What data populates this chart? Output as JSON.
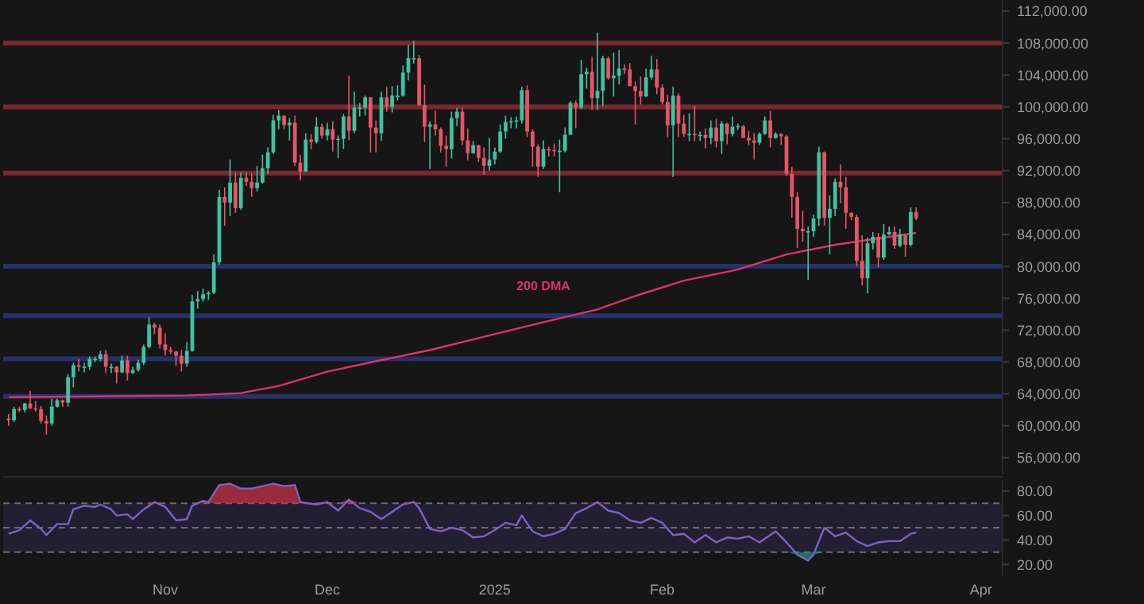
{
  "chart_data": [
    {
      "type": "candlestick",
      "tick_labels": "y",
      "grid": false,
      "xlim": [
        "2024-10-02",
        "2025-04-05"
      ],
      "ylim": [
        54000,
        113400
      ],
      "yticks": [
        {
          "value": 56000,
          "label": "56,000.00"
        },
        {
          "value": 60000,
          "label": "60,000.00"
        },
        {
          "value": 64000,
          "label": "64,000.00"
        },
        {
          "value": 68000,
          "label": "68,000.00"
        },
        {
          "value": 72000,
          "label": "72,000.00"
        },
        {
          "value": 76000,
          "label": "76,000.00"
        },
        {
          "value": 80000,
          "label": "80,000.00"
        },
        {
          "value": 84000,
          "label": "84,000.00"
        },
        {
          "value": 88000,
          "label": "88,000.00"
        },
        {
          "value": 92000,
          "label": "92,000.00"
        },
        {
          "value": 96000,
          "label": "96,000.00"
        },
        {
          "value": 100000,
          "label": "100,000.00"
        },
        {
          "value": 104000,
          "label": "104,000.00"
        },
        {
          "value": 108000,
          "label": "108,000.00"
        },
        {
          "value": 112000,
          "label": "112,000.00"
        }
      ],
      "ref_lines": [
        {
          "axis": "y",
          "value": 108000,
          "color": "#7b2630"
        },
        {
          "axis": "y",
          "value": 100000,
          "color": "#7b2630"
        },
        {
          "axis": "y",
          "value": 91700,
          "color": "#7b2630"
        },
        {
          "axis": "y",
          "value": 80000,
          "color": "#26306b"
        },
        {
          "axis": "y",
          "value": 73800,
          "color": "#26306b"
        },
        {
          "axis": "y",
          "value": 68400,
          "color": "#26306b"
        },
        {
          "axis": "y",
          "value": 63700,
          "color": "#26306b"
        }
      ],
      "x": [
        "2024-10-03",
        "2024-10-04",
        "2024-10-05",
        "2024-10-06",
        "2024-10-07",
        "2024-10-08",
        "2024-10-09",
        "2024-10-10",
        "2024-10-11",
        "2024-10-12",
        "2024-10-13",
        "2024-10-14",
        "2024-10-15",
        "2024-10-16",
        "2024-10-17",
        "2024-10-18",
        "2024-10-19",
        "2024-10-20",
        "2024-10-21",
        "2024-10-22",
        "2024-10-23",
        "2024-10-24",
        "2024-10-25",
        "2024-10-26",
        "2024-10-27",
        "2024-10-28",
        "2024-10-29",
        "2024-10-30",
        "2024-10-31",
        "2024-11-01",
        "2024-11-02",
        "2024-11-03",
        "2024-11-04",
        "2024-11-05",
        "2024-11-06",
        "2024-11-07",
        "2024-11-08",
        "2024-11-09",
        "2024-11-10",
        "2024-11-11",
        "2024-11-12",
        "2024-11-13",
        "2024-11-14",
        "2024-11-15",
        "2024-11-16",
        "2024-11-17",
        "2024-11-18",
        "2024-11-19",
        "2024-11-20",
        "2024-11-21",
        "2024-11-22",
        "2024-11-23",
        "2024-11-24",
        "2024-11-25",
        "2024-11-26",
        "2024-11-27",
        "2024-11-28",
        "2024-11-29",
        "2024-11-30",
        "2024-12-01",
        "2024-12-02",
        "2024-12-03",
        "2024-12-04",
        "2024-12-05",
        "2024-12-06",
        "2024-12-07",
        "2024-12-08",
        "2024-12-09",
        "2024-12-10",
        "2024-12-11",
        "2024-12-12",
        "2024-12-13",
        "2024-12-14",
        "2024-12-15",
        "2024-12-16",
        "2024-12-17",
        "2024-12-18",
        "2024-12-19",
        "2024-12-20",
        "2024-12-21",
        "2024-12-22",
        "2024-12-23",
        "2024-12-24",
        "2024-12-25",
        "2024-12-26",
        "2024-12-27",
        "2024-12-28",
        "2024-12-29",
        "2024-12-30",
        "2024-12-31",
        "2025-01-01",
        "2025-01-02",
        "2025-01-03",
        "2025-01-04",
        "2025-01-05",
        "2025-01-06",
        "2025-01-07",
        "2025-01-08",
        "2025-01-09",
        "2025-01-10",
        "2025-01-11",
        "2025-01-12",
        "2025-01-13",
        "2025-01-14",
        "2025-01-15",
        "2025-01-16",
        "2025-01-17",
        "2025-01-18",
        "2025-01-19",
        "2025-01-20",
        "2025-01-21",
        "2025-01-22",
        "2025-01-23",
        "2025-01-24",
        "2025-01-25",
        "2025-01-26",
        "2025-01-27",
        "2025-01-28",
        "2025-01-29",
        "2025-01-30",
        "2025-01-31",
        "2025-02-01",
        "2025-02-02",
        "2025-02-03",
        "2025-02-04",
        "2025-02-05",
        "2025-02-06",
        "2025-02-07",
        "2025-02-08",
        "2025-02-09",
        "2025-02-10",
        "2025-02-11",
        "2025-02-12",
        "2025-02-13",
        "2025-02-14",
        "2025-02-15",
        "2025-02-16",
        "2025-02-17",
        "2025-02-18",
        "2025-02-19",
        "2025-02-20",
        "2025-02-21",
        "2025-02-22",
        "2025-02-23",
        "2025-02-24",
        "2025-02-25",
        "2025-02-26",
        "2025-02-27",
        "2025-02-28",
        "2025-03-01",
        "2025-03-02",
        "2025-03-03",
        "2025-03-04",
        "2025-03-05",
        "2025-03-06",
        "2025-03-07",
        "2025-03-08",
        "2025-03-09",
        "2025-03-10",
        "2025-03-11",
        "2025-03-12",
        "2025-03-13",
        "2025-03-14",
        "2025-03-15",
        "2025-03-16",
        "2025-03-17",
        "2025-03-18",
        "2025-03-19",
        "2025-03-20"
      ],
      "ohlc": [
        [
          60900,
          61500,
          60000,
          60700
        ],
        [
          60700,
          62400,
          60500,
          62100
        ],
        [
          62100,
          62400,
          61700,
          62000
        ],
        [
          62000,
          62900,
          61700,
          62800
        ],
        [
          62800,
          64400,
          62100,
          62200
        ],
        [
          62200,
          63100,
          61800,
          62100
        ],
        [
          62100,
          62500,
          60300,
          60600
        ],
        [
          60600,
          61300,
          58900,
          60300
        ],
        [
          60300,
          63400,
          60000,
          62400
        ],
        [
          62400,
          63400,
          62300,
          63200
        ],
        [
          63200,
          63300,
          62400,
          62900
        ],
        [
          62900,
          66500,
          62400,
          66100
        ],
        [
          66100,
          67900,
          64800,
          67600
        ],
        [
          67600,
          68400,
          66800,
          67400
        ],
        [
          67400,
          67900,
          66700,
          67400
        ],
        [
          67400,
          68700,
          67000,
          68400
        ],
        [
          68400,
          68700,
          68000,
          68400
        ],
        [
          68400,
          69400,
          68100,
          69000
        ],
        [
          69000,
          69500,
          66600,
          67400
        ],
        [
          67400,
          67800,
          66600,
          67400
        ],
        [
          67400,
          67500,
          65300,
          66700
        ],
        [
          66700,
          68800,
          66600,
          68200
        ],
        [
          68200,
          68800,
          65700,
          66600
        ],
        [
          66600,
          67400,
          66500,
          67000
        ],
        [
          67000,
          68300,
          66800,
          67900
        ],
        [
          67900,
          70200,
          67600,
          69900
        ],
        [
          69900,
          73600,
          69700,
          72700
        ],
        [
          72700,
          72900,
          71500,
          72300
        ],
        [
          72300,
          72700,
          69700,
          70200
        ],
        [
          70200,
          71600,
          68800,
          69500
        ],
        [
          69500,
          69900,
          69000,
          69300
        ],
        [
          69300,
          69400,
          67500,
          68800
        ],
        [
          68800,
          69500,
          66800,
          67800
        ],
        [
          67800,
          70500,
          67400,
          69400
        ],
        [
          69400,
          76400,
          69300,
          75600
        ],
        [
          75600,
          76900,
          74700,
          75900
        ],
        [
          75900,
          77200,
          75600,
          76500
        ],
        [
          76500,
          76900,
          75800,
          76700
        ],
        [
          76700,
          81500,
          76500,
          80500
        ],
        [
          80500,
          89600,
          80200,
          88700
        ],
        [
          88700,
          89900,
          85100,
          88000
        ],
        [
          88000,
          93400,
          86300,
          90500
        ],
        [
          90500,
          91800,
          86700,
          87300
        ],
        [
          87300,
          91800,
          87100,
          91100
        ],
        [
          91100,
          91800,
          90100,
          90600
        ],
        [
          90600,
          91700,
          88700,
          89800
        ],
        [
          89800,
          92600,
          89400,
          90500
        ],
        [
          90500,
          94000,
          90400,
          92300
        ],
        [
          92300,
          94900,
          91600,
          94300
        ],
        [
          94300,
          99000,
          94100,
          98300
        ],
        [
          98300,
          99600,
          97200,
          98900
        ],
        [
          98900,
          98900,
          97200,
          97700
        ],
        [
          97700,
          98600,
          95800,
          98000
        ],
        [
          98000,
          98900,
          92600,
          93000
        ],
        [
          93000,
          94000,
          90800,
          91900
        ],
        [
          91900,
          96700,
          91800,
          95900
        ],
        [
          95900,
          96600,
          94700,
          95600
        ],
        [
          95600,
          98700,
          95400,
          97500
        ],
        [
          97500,
          97900,
          96000,
          96400
        ],
        [
          96400,
          98000,
          95800,
          97200
        ],
        [
          97200,
          98200,
          94400,
          95900
        ],
        [
          95900,
          96400,
          93600,
          96000
        ],
        [
          96000,
          99100,
          94700,
          98800
        ],
        [
          98800,
          103900,
          95800,
          97000
        ],
        [
          97000,
          101900,
          96700,
          99900
        ],
        [
          99900,
          100500,
          98800,
          99900
        ],
        [
          99900,
          101400,
          98900,
          101200
        ],
        [
          101200,
          101200,
          94300,
          97400
        ],
        [
          97400,
          98300,
          94300,
          96700
        ],
        [
          96700,
          101900,
          95700,
          101200
        ],
        [
          101200,
          102500,
          99400,
          100000
        ],
        [
          100000,
          102600,
          99300,
          101400
        ],
        [
          101400,
          102700,
          100800,
          101400
        ],
        [
          101400,
          105200,
          101300,
          104300
        ],
        [
          104300,
          107800,
          103300,
          106100
        ],
        [
          106100,
          108300,
          105400,
          106100
        ],
        [
          106100,
          106500,
          100100,
          100200
        ],
        [
          100200,
          102800,
          95600,
          97500
        ],
        [
          97500,
          98200,
          92200,
          97800
        ],
        [
          97800,
          99500,
          96400,
          97200
        ],
        [
          97200,
          97400,
          94300,
          95100
        ],
        [
          95100,
          96400,
          92500,
          94700
        ],
        [
          94700,
          99400,
          93500,
          98600
        ],
        [
          98600,
          99900,
          97600,
          99400
        ],
        [
          99400,
          99900,
          95200,
          95800
        ],
        [
          95800,
          97300,
          93300,
          94200
        ],
        [
          94200,
          95700,
          94100,
          95200
        ],
        [
          95200,
          95200,
          93100,
          93600
        ],
        [
          93600,
          94900,
          91500,
          92600
        ],
        [
          92600,
          96100,
          92000,
          93400
        ],
        [
          93400,
          94900,
          92800,
          94400
        ],
        [
          94400,
          97800,
          94200,
          96900
        ],
        [
          96900,
          98900,
          96000,
          98100
        ],
        [
          98100,
          98700,
          97300,
          98200
        ],
        [
          98200,
          98800,
          97300,
          98300
        ],
        [
          98300,
          102500,
          97900,
          102100
        ],
        [
          102100,
          102700,
          96200,
          96900
        ],
        [
          96900,
          97200,
          92500,
          95000
        ],
        [
          95000,
          95300,
          91200,
          92500
        ],
        [
          92500,
          95800,
          92200,
          94700
        ],
        [
          94700,
          95000,
          93800,
          94600
        ],
        [
          94600,
          95400,
          93800,
          94500
        ],
        [
          94500,
          95900,
          89300,
          94500
        ],
        [
          94500,
          97400,
          94300,
          96500
        ],
        [
          96500,
          100700,
          96500,
          100500
        ],
        [
          100500,
          100800,
          97300,
          99900
        ],
        [
          99900,
          105900,
          99700,
          104100
        ],
        [
          104100,
          104900,
          102300,
          104400
        ],
        [
          104400,
          106300,
          99600,
          101100
        ],
        [
          101100,
          109300,
          99600,
          102000
        ],
        [
          102000,
          106400,
          100100,
          106100
        ],
        [
          106100,
          106300,
          103400,
          103600
        ],
        [
          103600,
          106800,
          101300,
          103900
        ],
        [
          103900,
          107100,
          102800,
          104800
        ],
        [
          104800,
          105300,
          104100,
          104700
        ],
        [
          104700,
          105500,
          102600,
          102600
        ],
        [
          102600,
          103200,
          97800,
          102000
        ],
        [
          102000,
          103800,
          100300,
          101300
        ],
        [
          101300,
          104800,
          101300,
          103700
        ],
        [
          103700,
          106400,
          103400,
          104700
        ],
        [
          104700,
          106000,
          101600,
          102400
        ],
        [
          102400,
          102800,
          100300,
          100600
        ],
        [
          100600,
          101500,
          96200,
          97700
        ],
        [
          97700,
          102500,
          91200,
          101400
        ],
        [
          101400,
          101700,
          96200,
          97900
        ],
        [
          97900,
          99000,
          96200,
          96600
        ],
        [
          96600,
          99200,
          95700,
          96600
        ],
        [
          96600,
          100100,
          95700,
          96500
        ],
        [
          96500,
          96900,
          95700,
          96500
        ],
        [
          96500,
          97300,
          94800,
          96100
        ],
        [
          96100,
          98300,
          95300,
          97400
        ],
        [
          97400,
          98500,
          94900,
          95700
        ],
        [
          95700,
          98200,
          94100,
          97900
        ],
        [
          97900,
          98000,
          95300,
          96600
        ],
        [
          96600,
          98800,
          96300,
          97500
        ],
        [
          97500,
          97900,
          97100,
          97600
        ],
        [
          97600,
          97700,
          96100,
          96100
        ],
        [
          96100,
          97000,
          95200,
          95800
        ],
        [
          95800,
          96700,
          93400,
          95500
        ],
        [
          95500,
          96800,
          95200,
          96600
        ],
        [
          96600,
          98800,
          96500,
          98300
        ],
        [
          98300,
          99500,
          94900,
          96100
        ],
        [
          96100,
          96800,
          96000,
          96600
        ],
        [
          96600,
          96700,
          95200,
          96300
        ],
        [
          96300,
          96500,
          91300,
          91600
        ],
        [
          91600,
          92500,
          86100,
          88700
        ],
        [
          88700,
          89300,
          82300,
          84700
        ],
        [
          84700,
          87000,
          83100,
          84400
        ],
        [
          84400,
          85000,
          78300,
          84400
        ],
        [
          84400,
          86500,
          83700,
          86000
        ],
        [
          86000,
          95000,
          85100,
          94300
        ],
        [
          94300,
          94400,
          85100,
          86100
        ],
        [
          86100,
          88900,
          81500,
          87200
        ],
        [
          87200,
          91000,
          86300,
          90600
        ],
        [
          90600,
          92800,
          87900,
          89900
        ],
        [
          89900,
          91200,
          84700,
          86700
        ],
        [
          86700,
          86800,
          85800,
          86200
        ],
        [
          86200,
          86500,
          80000,
          80700
        ],
        [
          80700,
          83900,
          77600,
          78500
        ],
        [
          78500,
          83600,
          76600,
          82900
        ],
        [
          82900,
          84300,
          82100,
          83700
        ],
        [
          83700,
          84200,
          79900,
          81100
        ],
        [
          81100,
          85300,
          80800,
          84000
        ],
        [
          84000,
          85000,
          83900,
          84300
        ],
        [
          84300,
          85000,
          82200,
          82600
        ],
        [
          82600,
          84700,
          82400,
          84000
        ],
        [
          84000,
          84000,
          81200,
          82700
        ],
        [
          82700,
          87400,
          82500,
          86800
        ],
        [
          86800,
          87400,
          85800,
          86000
        ]
      ],
      "series": [
        {
          "name": "200 DMA",
          "type": "line",
          "color": "#e0306f",
          "x": [
            "2024-10-03",
            "2024-10-20",
            "2024-11-05",
            "2024-11-15",
            "2024-11-22",
            "2024-12-01",
            "2024-12-10",
            "2024-12-20",
            "2025-01-01",
            "2025-01-10",
            "2025-01-20",
            "2025-01-28",
            "2025-02-05",
            "2025-02-15",
            "2025-02-24",
            "2025-03-05",
            "2025-03-12",
            "2025-03-20"
          ],
          "values": [
            63600,
            63700,
            63800,
            64100,
            65000,
            66800,
            68100,
            69500,
            71500,
            73000,
            74600,
            76500,
            78200,
            79600,
            81500,
            82700,
            83400,
            84200
          ]
        }
      ]
    },
    {
      "type": "line",
      "grid": false,
      "xlim": [
        "2024-10-02",
        "2025-04-05"
      ],
      "ylim": [
        11,
        89
      ],
      "xticks": [
        {
          "value": "2024-11-01",
          "label": "Nov"
        },
        {
          "value": "2024-12-01",
          "label": "Dec"
        },
        {
          "value": "2025-01-01",
          "label": "2025"
        },
        {
          "value": "2025-02-01",
          "label": "Feb"
        },
        {
          "value": "2025-03-01",
          "label": "Mar"
        },
        {
          "value": "2025-04-01",
          "label": "Apr"
        }
      ],
      "yticks": [
        {
          "value": 20,
          "label": "20.00"
        },
        {
          "value": 40,
          "label": "40.00"
        },
        {
          "value": 60,
          "label": "60.00"
        },
        {
          "value": 80,
          "label": "80.00"
        }
      ],
      "bands": [
        {
          "axis": "y",
          "from": 30,
          "to": 70,
          "color": "#221f33"
        }
      ],
      "ref_lines": [
        {
          "axis": "y",
          "value": 70,
          "color": "#6a6a78",
          "line_style": "dashed"
        },
        {
          "axis": "y",
          "value": 50,
          "color": "#6a6a78",
          "line_style": "dashed"
        },
        {
          "axis": "y",
          "value": 30,
          "color": "#6a6a78",
          "line_style": "dashed"
        }
      ],
      "series": [
        {
          "color": "#7e5fc4",
          "x": [
            "2024-10-03",
            "2024-10-05",
            "2024-10-07",
            "2024-10-09",
            "2024-10-10",
            "2024-10-12",
            "2024-10-14",
            "2024-10-15",
            "2024-10-17",
            "2024-10-19",
            "2024-10-20",
            "2024-10-22",
            "2024-10-23",
            "2024-10-25",
            "2024-10-26",
            "2024-10-28",
            "2024-10-30",
            "2024-11-01",
            "2024-11-03",
            "2024-11-05",
            "2024-11-06",
            "2024-11-08",
            "2024-11-09",
            "2024-11-11",
            "2024-11-13",
            "2024-11-15",
            "2024-11-17",
            "2024-11-19",
            "2024-11-21",
            "2024-11-23",
            "2024-11-25",
            "2024-11-26",
            "2024-11-29",
            "2024-12-01",
            "2024-12-03",
            "2024-12-05",
            "2024-12-07",
            "2024-12-09",
            "2024-12-11",
            "2024-12-13",
            "2024-12-15",
            "2024-12-17",
            "2024-12-18",
            "2024-12-20",
            "2024-12-22",
            "2024-12-24",
            "2024-12-26",
            "2024-12-28",
            "2024-12-30",
            "2025-01-01",
            "2025-01-03",
            "2025-01-05",
            "2025-01-06",
            "2025-01-08",
            "2025-01-10",
            "2025-01-12",
            "2025-01-14",
            "2025-01-16",
            "2025-01-18",
            "2025-01-20",
            "2025-01-22",
            "2025-01-24",
            "2025-01-26",
            "2025-01-28",
            "2025-01-30",
            "2025-02-01",
            "2025-02-03",
            "2025-02-05",
            "2025-02-07",
            "2025-02-09",
            "2025-02-11",
            "2025-02-13",
            "2025-02-15",
            "2025-02-17",
            "2025-02-19",
            "2025-02-22",
            "2025-02-24",
            "2025-02-26",
            "2025-02-28",
            "2025-03-01",
            "2025-03-03",
            "2025-03-05",
            "2025-03-07",
            "2025-03-09",
            "2025-03-11",
            "2025-03-13",
            "2025-03-15",
            "2025-03-17",
            "2025-03-19",
            "2025-03-20"
          ],
          "values": [
            45,
            48,
            56,
            49,
            44,
            53,
            53,
            65,
            68,
            67,
            69,
            65,
            60,
            61,
            57,
            65,
            71,
            67,
            56,
            57,
            68,
            72,
            71,
            85,
            86,
            82,
            82,
            84,
            86,
            84,
            85,
            71,
            69,
            71,
            64,
            73,
            66,
            63,
            57,
            63,
            69,
            71,
            66,
            49,
            47,
            50,
            48,
            42,
            43,
            48,
            54,
            52,
            60,
            47,
            43,
            45,
            49,
            62,
            66,
            71,
            64,
            62,
            56,
            54,
            58,
            54,
            44,
            45,
            38,
            44,
            38,
            42,
            41,
            43,
            38,
            47,
            38,
            28,
            23,
            28,
            50,
            43,
            46,
            39,
            35,
            38,
            39,
            39,
            45,
            46
          ]
        }
      ]
    }
  ]
}
